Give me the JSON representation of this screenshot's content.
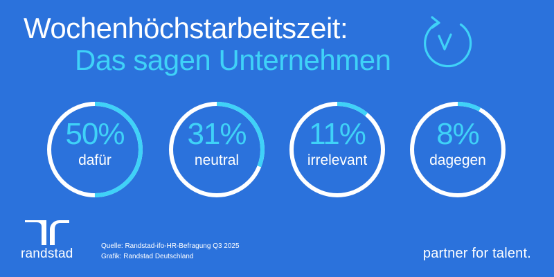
{
  "header": {
    "title": "Wochenhöchstarbeitszeit:",
    "subtitle": "Das sagen Unternehmen"
  },
  "icons": {
    "clock": "clock-refresh-icon",
    "logo": "randstad-logo-icon"
  },
  "colors": {
    "background": "#2b72dc",
    "accent": "#3fd2f8",
    "ring": "#ffffff",
    "text": "#ffffff"
  },
  "chart_data": {
    "type": "pie",
    "categories": [
      "dafür",
      "neutral",
      "irrelevant",
      "dagegen"
    ],
    "values": [
      50,
      31,
      11,
      8
    ],
    "value_labels": [
      "50%",
      "31%",
      "11%",
      "8%"
    ],
    "unit": "%"
  },
  "footer": {
    "brand": "randstad",
    "source_line1": "Quelle: Randstad-ifo-HR-Befragung Q3 2025",
    "source_line2": "Grafik: Randstad Deutschland",
    "tagline": "partner for talent."
  }
}
